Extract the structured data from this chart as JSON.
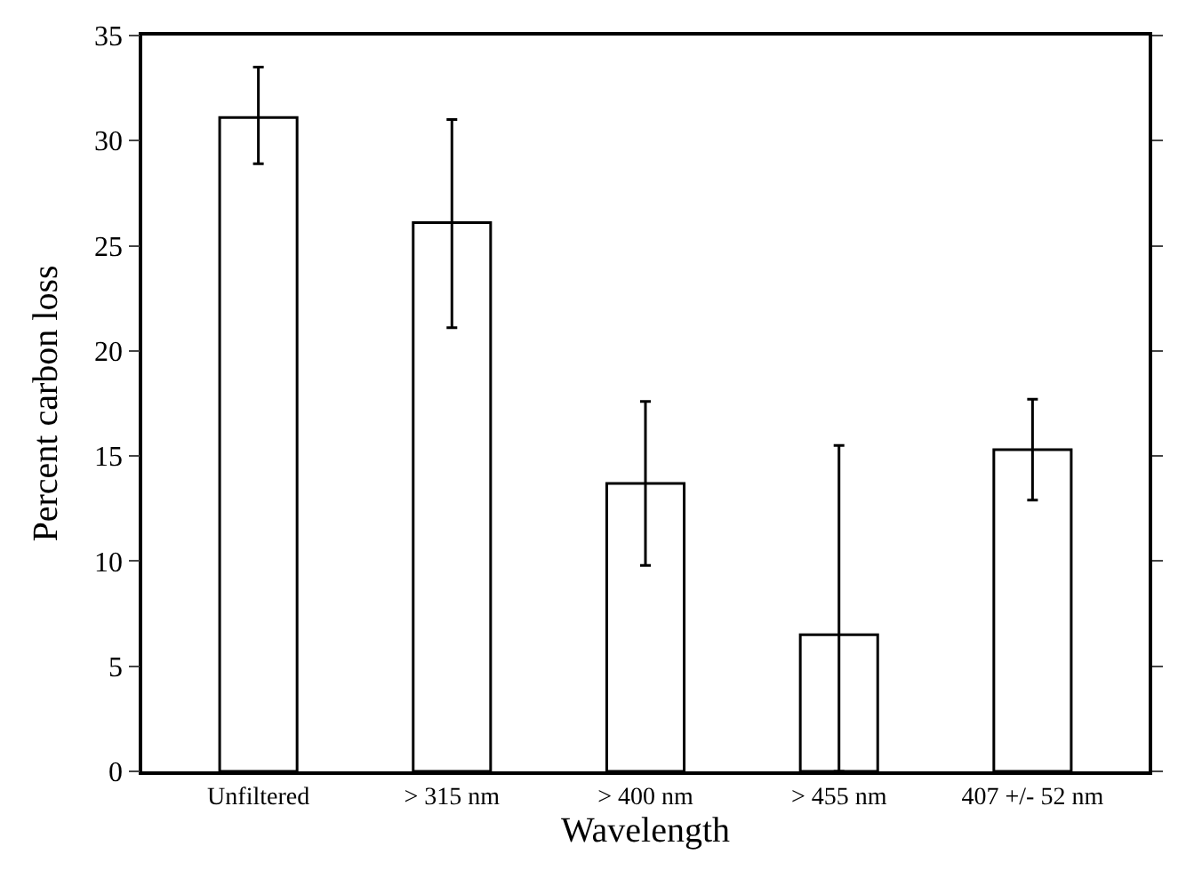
{
  "chart_data": {
    "type": "bar",
    "xlabel": "Wavelength",
    "ylabel": "Percent carbon loss",
    "categories": [
      "Unfiltered",
      "> 315 nm",
      "> 400 nm",
      "> 455 nm",
      "407 +/- 52 nm"
    ],
    "values": [
      31.1,
      26.1,
      13.7,
      6.5,
      15.3
    ],
    "errors": [
      [
        28.9,
        33.5
      ],
      [
        21.1,
        31.0
      ],
      [
        9.8,
        17.6
      ],
      [
        0,
        15.5
      ],
      [
        12.9,
        17.7
      ]
    ],
    "color": "#ffffff",
    "ylim": [
      0,
      35
    ],
    "yticks": [
      0,
      5,
      10,
      15,
      20,
      25,
      30,
      35
    ]
  }
}
